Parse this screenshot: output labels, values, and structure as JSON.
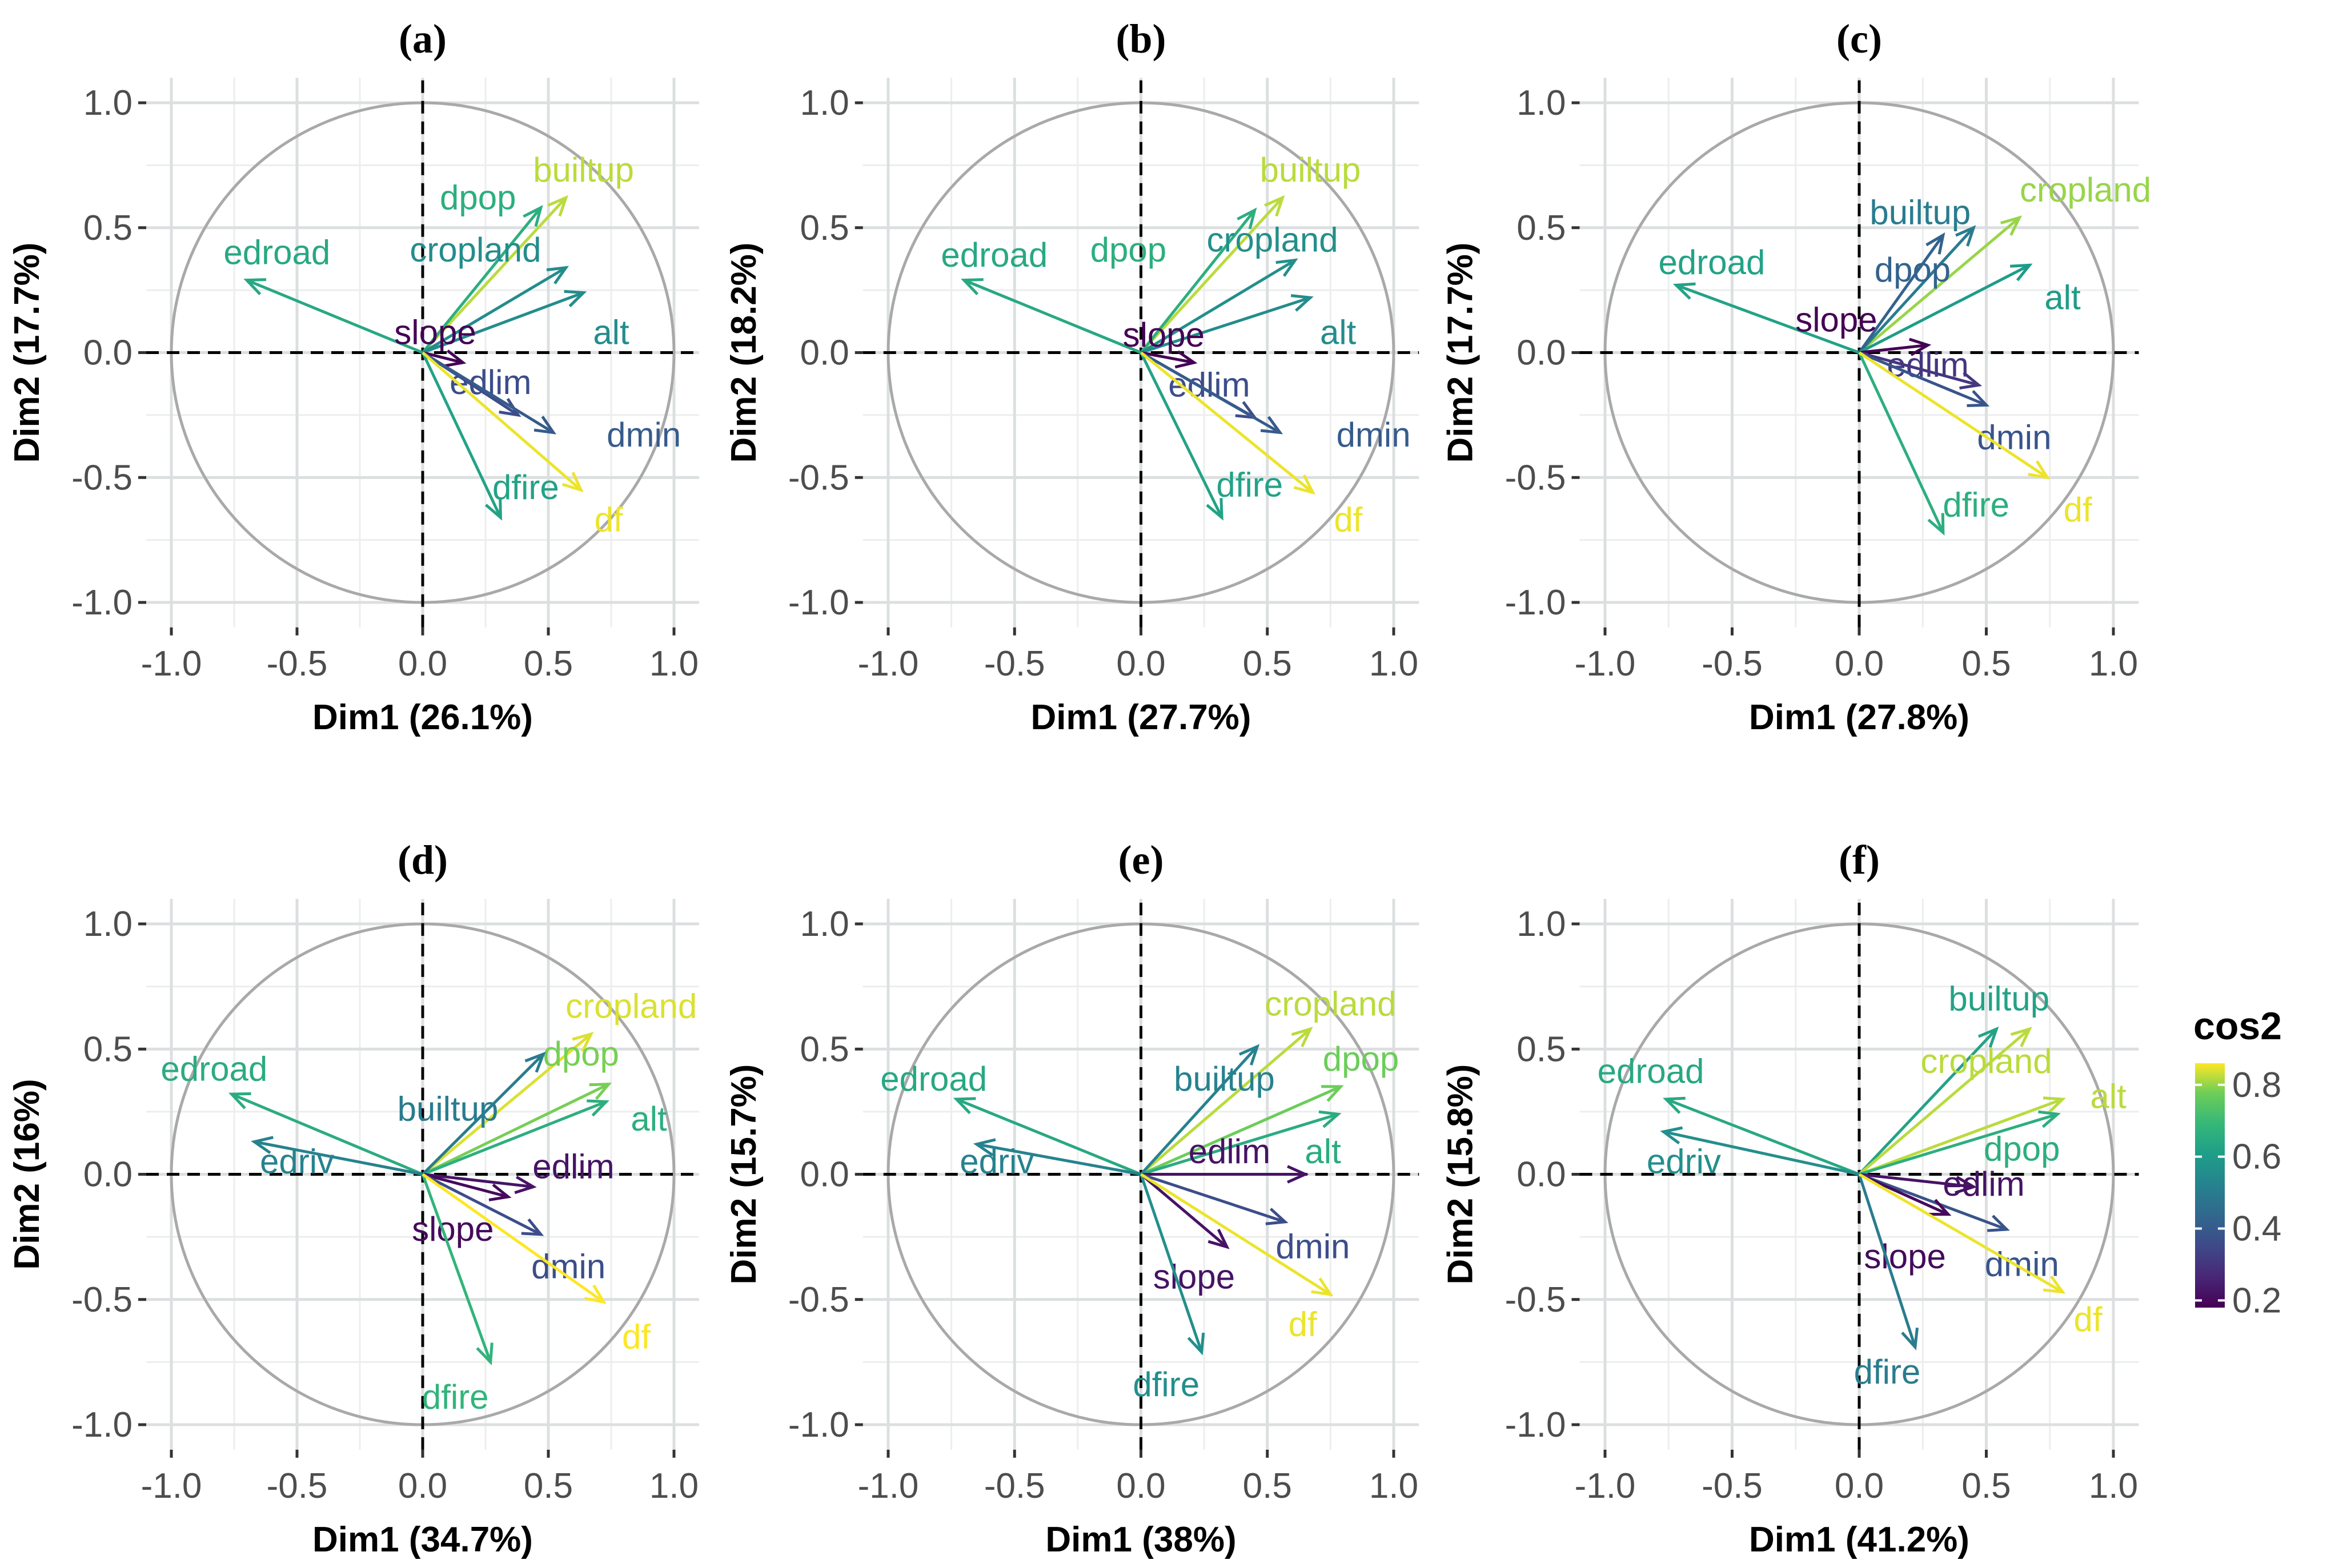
{
  "chart_data": [
    {
      "type": "scatter",
      "panel": "(a)",
      "xlabel": "Dim1 (26.1%)",
      "ylabel": "Dim2 (17.7%)",
      "xlim": [
        -1.1,
        1.1
      ],
      "ylim": [
        -1.1,
        1.1
      ],
      "xticks": [
        -1.0,
        -0.5,
        0.0,
        0.5,
        1.0
      ],
      "yticks": [
        -1.0,
        -0.5,
        0.0,
        0.5,
        1.0
      ],
      "tick_labels": [
        "-1.0",
        "-0.5",
        "0.0",
        "0.5",
        "1.0"
      ],
      "vectors": [
        {
          "label": "builtup",
          "x": 0.57,
          "y": 0.62,
          "cos2": 0.82,
          "lx": 0.64,
          "ly": 0.73
        },
        {
          "label": "dpop",
          "x": 0.47,
          "y": 0.58,
          "cos2": 0.66,
          "lx": 0.22,
          "ly": 0.62
        },
        {
          "label": "cropland",
          "x": 0.57,
          "y": 0.34,
          "cos2": 0.55,
          "lx": 0.21,
          "ly": 0.41
        },
        {
          "label": "edroad",
          "x": -0.7,
          "y": 0.29,
          "cos2": 0.64,
          "lx": -0.58,
          "ly": 0.4
        },
        {
          "label": "alt",
          "x": 0.64,
          "y": 0.24,
          "cos2": 0.55,
          "lx": 0.75,
          "ly": 0.08
        },
        {
          "label": "slope",
          "x": 0.16,
          "y": -0.04,
          "cos2": 0.17,
          "lx": 0.05,
          "ly": 0.08
        },
        {
          "label": "edlim",
          "x": 0.38,
          "y": -0.25,
          "cos2": 0.36,
          "lx": 0.27,
          "ly": -0.12
        },
        {
          "label": "dmin",
          "x": 0.52,
          "y": -0.32,
          "cos2": 0.4,
          "lx": 0.88,
          "ly": -0.33
        },
        {
          "label": "dfire",
          "x": 0.31,
          "y": -0.66,
          "cos2": 0.62,
          "lx": 0.41,
          "ly": -0.54
        },
        {
          "label": "df",
          "x": 0.63,
          "y": -0.55,
          "cos2": 0.85,
          "lx": 0.74,
          "ly": -0.67
        }
      ]
    },
    {
      "type": "scatter",
      "panel": "(b)",
      "xlabel": "Dim1 (27.7%)",
      "ylabel": "Dim2 (18.2%)",
      "xlim": [
        -1.1,
        1.1
      ],
      "ylim": [
        -1.1,
        1.1
      ],
      "xticks": [
        -1.0,
        -0.5,
        0.0,
        0.5,
        1.0
      ],
      "yticks": [
        -1.0,
        -0.5,
        0.0,
        0.5,
        1.0
      ],
      "tick_labels": [
        "-1.0",
        "-0.5",
        "0.0",
        "0.5",
        "1.0"
      ],
      "vectors": [
        {
          "label": "builtup",
          "x": 0.56,
          "y": 0.62,
          "cos2": 0.82,
          "lx": 0.67,
          "ly": 0.73
        },
        {
          "label": "dpop",
          "x": 0.45,
          "y": 0.57,
          "cos2": 0.66,
          "lx": -0.05,
          "ly": 0.41
        },
        {
          "label": "cropland",
          "x": 0.61,
          "y": 0.37,
          "cos2": 0.56,
          "lx": 0.52,
          "ly": 0.45
        },
        {
          "label": "edroad",
          "x": -0.7,
          "y": 0.29,
          "cos2": 0.64,
          "lx": -0.58,
          "ly": 0.39
        },
        {
          "label": "alt",
          "x": 0.67,
          "y": 0.22,
          "cos2": 0.55,
          "lx": 0.78,
          "ly": 0.08
        },
        {
          "label": "slope",
          "x": 0.21,
          "y": -0.04,
          "cos2": 0.17,
          "lx": 0.09,
          "ly": 0.07
        },
        {
          "label": "edlim",
          "x": 0.45,
          "y": -0.26,
          "cos2": 0.36,
          "lx": 0.27,
          "ly": -0.13
        },
        {
          "label": "dmin",
          "x": 0.55,
          "y": -0.32,
          "cos2": 0.4,
          "lx": 0.92,
          "ly": -0.33
        },
        {
          "label": "dfire",
          "x": 0.32,
          "y": -0.66,
          "cos2": 0.62,
          "lx": 0.43,
          "ly": -0.53
        },
        {
          "label": "df",
          "x": 0.68,
          "y": -0.56,
          "cos2": 0.85,
          "lx": 0.82,
          "ly": -0.67
        }
      ]
    },
    {
      "type": "scatter",
      "panel": "(c)",
      "xlabel": "Dim1 (27.8%)",
      "ylabel": "Dim2 (17.7%)",
      "xlim": [
        -1.1,
        1.1
      ],
      "ylim": [
        -1.1,
        1.1
      ],
      "xticks": [
        -1.0,
        -0.5,
        0.0,
        0.5,
        1.0
      ],
      "yticks": [
        -1.0,
        -0.5,
        0.0,
        0.5,
        1.0
      ],
      "tick_labels": [
        "-1.0",
        "-0.5",
        "0.0",
        "0.5",
        "1.0"
      ],
      "vectors": [
        {
          "label": "cropland",
          "x": 0.63,
          "y": 0.54,
          "cos2": 0.8,
          "lx": 0.89,
          "ly": 0.65
        },
        {
          "label": "builtup",
          "x": 0.45,
          "y": 0.5,
          "cos2": 0.5,
          "lx": 0.24,
          "ly": 0.56
        },
        {
          "label": "dpop",
          "x": 0.33,
          "y": 0.47,
          "cos2": 0.42,
          "lx": 0.21,
          "ly": 0.33
        },
        {
          "label": "edroad",
          "x": -0.72,
          "y": 0.27,
          "cos2": 0.62,
          "lx": -0.58,
          "ly": 0.36
        },
        {
          "label": "alt",
          "x": 0.67,
          "y": 0.35,
          "cos2": 0.6,
          "lx": 0.8,
          "ly": 0.22
        },
        {
          "label": "slope",
          "x": 0.27,
          "y": 0.03,
          "cos2": 0.17,
          "lx": -0.09,
          "ly": 0.13
        },
        {
          "label": "edlim",
          "x": 0.47,
          "y": -0.13,
          "cos2": 0.3,
          "lx": 0.27,
          "ly": -0.05
        },
        {
          "label": "dmin",
          "x": 0.5,
          "y": -0.21,
          "cos2": 0.38,
          "lx": 0.61,
          "ly": -0.34
        },
        {
          "label": "dfire",
          "x": 0.33,
          "y": -0.72,
          "cos2": 0.66,
          "lx": 0.46,
          "ly": -0.61
        },
        {
          "label": "df",
          "x": 0.74,
          "y": -0.5,
          "cos2": 0.85,
          "lx": 0.86,
          "ly": -0.63
        }
      ]
    },
    {
      "type": "scatter",
      "panel": "(d)",
      "xlabel": "Dim1 (34.7%)",
      "ylabel": "Dim2 (16%)",
      "xlim": [
        -1.1,
        1.1
      ],
      "ylim": [
        -1.1,
        1.1
      ],
      "xticks": [
        -1.0,
        -0.5,
        0.0,
        0.5,
        1.0
      ],
      "yticks": [
        -1.0,
        -0.5,
        0.0,
        0.5,
        1.0
      ],
      "tick_labels": [
        "-1.0",
        "-0.5",
        "0.0",
        "0.5",
        "1.0"
      ],
      "vectors": [
        {
          "label": "cropland",
          "x": 0.67,
          "y": 0.56,
          "cos2": 0.84,
          "lx": 0.83,
          "ly": 0.67
        },
        {
          "label": "dpop",
          "x": 0.74,
          "y": 0.36,
          "cos2": 0.78,
          "lx": 0.63,
          "ly": 0.48
        },
        {
          "label": "alt",
          "x": 0.73,
          "y": 0.29,
          "cos2": 0.66,
          "lx": 0.9,
          "ly": 0.22
        },
        {
          "label": "builtup",
          "x": 0.48,
          "y": 0.48,
          "cos2": 0.5,
          "lx": 0.1,
          "ly": 0.26
        },
        {
          "label": "edroad",
          "x": -0.76,
          "y": 0.32,
          "cos2": 0.65,
          "lx": -0.83,
          "ly": 0.42
        },
        {
          "label": "edriv",
          "x": -0.67,
          "y": 0.13,
          "cos2": 0.52,
          "lx": -0.5,
          "ly": 0.05
        },
        {
          "label": "edlim",
          "x": 0.44,
          "y": -0.05,
          "cos2": 0.22,
          "lx": 0.6,
          "ly": 0.03
        },
        {
          "label": "slope",
          "x": 0.34,
          "y": -0.09,
          "cos2": 0.2,
          "lx": 0.12,
          "ly": -0.22
        },
        {
          "label": "dmin",
          "x": 0.47,
          "y": -0.24,
          "cos2": 0.36,
          "lx": 0.58,
          "ly": -0.37
        },
        {
          "label": "dfire",
          "x": 0.27,
          "y": -0.75,
          "cos2": 0.68,
          "lx": 0.13,
          "ly": -0.89
        },
        {
          "label": "df",
          "x": 0.72,
          "y": -0.51,
          "cos2": 0.88,
          "lx": 0.85,
          "ly": -0.65
        }
      ]
    },
    {
      "type": "scatter",
      "panel": "(e)",
      "xlabel": "Dim1 (38%)",
      "ylabel": "Dim2 (15.7%)",
      "xlim": [
        -1.1,
        1.1
      ],
      "ylim": [
        -1.1,
        1.1
      ],
      "xticks": [
        -1.0,
        -0.5,
        0.0,
        0.5,
        1.0
      ],
      "yticks": [
        -1.0,
        -0.5,
        0.0,
        0.5,
        1.0
      ],
      "tick_labels": [
        "-1.0",
        "-0.5",
        "0.0",
        "0.5",
        "1.0"
      ],
      "vectors": [
        {
          "label": "cropland",
          "x": 0.67,
          "y": 0.58,
          "cos2": 0.82,
          "lx": 0.75,
          "ly": 0.68
        },
        {
          "label": "dpop",
          "x": 0.79,
          "y": 0.35,
          "cos2": 0.77,
          "lx": 0.87,
          "ly": 0.46
        },
        {
          "label": "builtup",
          "x": 0.46,
          "y": 0.51,
          "cos2": 0.52,
          "lx": 0.33,
          "ly": 0.38
        },
        {
          "label": "alt",
          "x": 0.78,
          "y": 0.24,
          "cos2": 0.65,
          "lx": 0.72,
          "ly": 0.09
        },
        {
          "label": "edroad",
          "x": -0.73,
          "y": 0.3,
          "cos2": 0.64,
          "lx": -0.82,
          "ly": 0.38
        },
        {
          "label": "edriv",
          "x": -0.65,
          "y": 0.12,
          "cos2": 0.52,
          "lx": -0.57,
          "ly": 0.05
        },
        {
          "label": "edlim",
          "x": 0.65,
          "y": 0.0,
          "cos2": 0.22,
          "lx": 0.35,
          "ly": 0.09
        },
        {
          "label": "dmin",
          "x": 0.57,
          "y": -0.19,
          "cos2": 0.36,
          "lx": 0.68,
          "ly": -0.29
        },
        {
          "label": "slope",
          "x": 0.34,
          "y": -0.29,
          "cos2": 0.22,
          "lx": 0.21,
          "ly": -0.41
        },
        {
          "label": "dfire",
          "x": 0.24,
          "y": -0.71,
          "cos2": 0.56,
          "lx": 0.1,
          "ly": -0.84
        },
        {
          "label": "df",
          "x": 0.75,
          "y": -0.48,
          "cos2": 0.85,
          "lx": 0.64,
          "ly": -0.6
        }
      ]
    },
    {
      "type": "scatter",
      "panel": "(f)",
      "xlabel": "Dim1 (41.2%)",
      "ylabel": "Dim2 (15.8%)",
      "xlim": [
        -1.1,
        1.1
      ],
      "ylim": [
        -1.1,
        1.1
      ],
      "xticks": [
        -1.0,
        -0.5,
        0.0,
        0.5,
        1.0
      ],
      "yticks": [
        -1.0,
        -0.5,
        0.0,
        0.5,
        1.0
      ],
      "tick_labels": [
        "-1.0",
        "-0.5",
        "0.0",
        "0.5",
        "1.0"
      ],
      "vectors": [
        {
          "label": "builtup",
          "x": 0.54,
          "y": 0.58,
          "cos2": 0.62,
          "lx": 0.55,
          "ly": 0.7
        },
        {
          "label": "cropland",
          "x": 0.67,
          "y": 0.58,
          "cos2": 0.82,
          "lx": 0.5,
          "ly": 0.45
        },
        {
          "label": "alt",
          "x": 0.8,
          "y": 0.3,
          "cos2": 0.82,
          "lx": 0.98,
          "ly": 0.31
        },
        {
          "label": "dpop",
          "x": 0.78,
          "y": 0.24,
          "cos2": 0.66,
          "lx": 0.64,
          "ly": 0.1
        },
        {
          "label": "edroad",
          "x": -0.76,
          "y": 0.3,
          "cos2": 0.64,
          "lx": -0.82,
          "ly": 0.41
        },
        {
          "label": "edriv",
          "x": -0.77,
          "y": 0.17,
          "cos2": 0.56,
          "lx": -0.69,
          "ly": 0.05
        },
        {
          "label": "edlim",
          "x": 0.45,
          "y": -0.05,
          "cos2": 0.22,
          "lx": 0.49,
          "ly": -0.04
        },
        {
          "label": "dmin",
          "x": 0.58,
          "y": -0.22,
          "cos2": 0.38,
          "lx": 0.64,
          "ly": -0.36
        },
        {
          "label": "slope",
          "x": 0.35,
          "y": -0.16,
          "cos2": 0.2,
          "lx": 0.18,
          "ly": -0.33
        },
        {
          "label": "dfire",
          "x": 0.22,
          "y": -0.69,
          "cos2": 0.5,
          "lx": 0.11,
          "ly": -0.79
        },
        {
          "label": "df",
          "x": 0.8,
          "y": -0.47,
          "cos2": 0.85,
          "lx": 0.9,
          "ly": -0.58
        }
      ]
    }
  ],
  "legend": {
    "title": "cos2",
    "ticks": [
      0.2,
      0.4,
      0.6,
      0.8
    ],
    "tick_labels": [
      "0.2",
      "0.4",
      "0.6",
      "0.8"
    ],
    "range": [
      0.18,
      0.86
    ],
    "colormap": "viridis"
  }
}
